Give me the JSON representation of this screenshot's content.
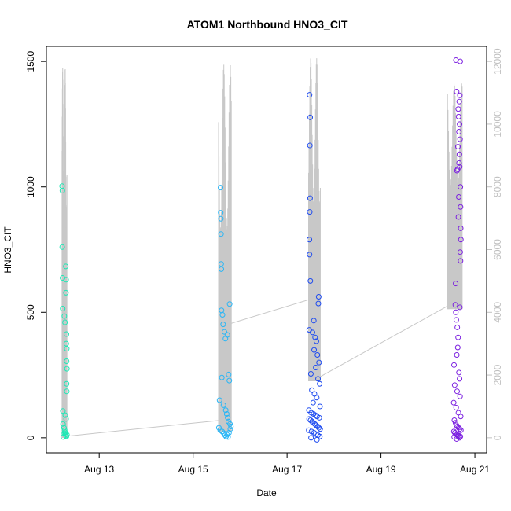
{
  "chart_data": {
    "type": "scatter",
    "title": "ATOM1 Northbound HNO3_CIT",
    "xlabel": "Date",
    "ylabel": "HNO3_CIT",
    "xlim": [
      "2016-08-11T21:00",
      "2016-08-21T06:00"
    ],
    "ylim": [
      -60,
      1560
    ],
    "y2lim": [
      -480,
      12480
    ],
    "x_ticks": [
      {
        "date": "2016-08-13T00:00",
        "label": "Aug 13"
      },
      {
        "date": "2016-08-15T00:00",
        "label": "Aug 15"
      },
      {
        "date": "2016-08-17T00:00",
        "label": "Aug 17"
      },
      {
        "date": "2016-08-19T00:00",
        "label": "Aug 19"
      },
      {
        "date": "2016-08-21T00:00",
        "label": "Aug 21"
      }
    ],
    "y_ticks": [
      0,
      500,
      1000,
      1500
    ],
    "y2_ticks": [
      0,
      2000,
      4000,
      6000,
      8000,
      10000,
      12000
    ],
    "grid": false,
    "secondary_series": {
      "color": "#c8c8c8",
      "axis": "right",
      "summary_by_flight": [
        {
          "start": "2016-08-12T05:00",
          "end": "2016-08-12T07:30",
          "min": 0,
          "max": 11800,
          "end_value": 0
        },
        {
          "start": "2016-08-15T13:00",
          "end": "2016-08-15T19:30",
          "min": 200,
          "max": 11900,
          "end_value": 3650
        },
        {
          "start": "2016-08-17T11:00",
          "end": "2016-08-17T17:00",
          "min": 1800,
          "max": 12100,
          "end_value": 1950
        },
        {
          "start": "2016-08-20T10:00",
          "end": "2016-08-20T17:30",
          "min": 4100,
          "max": 11300,
          "end_value": 4100
        }
      ],
      "connector_points": [
        {
          "x": "2016-08-12T07:30",
          "y": 50
        },
        {
          "x": "2016-08-15T13:00",
          "y": 550
        },
        {
          "x": "2016-08-15T19:30",
          "y": 3650
        },
        {
          "x": "2016-08-17T11:00",
          "y": 4400
        },
        {
          "x": "2016-08-17T17:00",
          "y": 1950
        },
        {
          "x": "2016-08-20T10:00",
          "y": 4200
        }
      ]
    },
    "series": [
      {
        "color": "#1de9b6",
        "points": [
          {
            "x": "2016-08-12T05:00",
            "y": 1003
          },
          {
            "x": "2016-08-12T05:10",
            "y": 985
          },
          {
            "x": "2016-08-12T05:05",
            "y": 760
          },
          {
            "x": "2016-08-12T05:15",
            "y": 637
          },
          {
            "x": "2016-08-12T05:20",
            "y": 515
          },
          {
            "x": "2016-08-12T06:10",
            "y": 485
          },
          {
            "x": "2016-08-12T06:30",
            "y": 460
          },
          {
            "x": "2016-08-12T06:55",
            "y": 683
          },
          {
            "x": "2016-08-12T07:05",
            "y": 630
          },
          {
            "x": "2016-08-12T07:00",
            "y": 578
          },
          {
            "x": "2016-08-12T07:15",
            "y": 413
          },
          {
            "x": "2016-08-12T07:10",
            "y": 375
          },
          {
            "x": "2016-08-12T07:25",
            "y": 355
          },
          {
            "x": "2016-08-12T07:20",
            "y": 305
          },
          {
            "x": "2016-08-12T07:30",
            "y": 275
          },
          {
            "x": "2016-08-12T07:20",
            "y": 215
          },
          {
            "x": "2016-08-12T07:25",
            "y": 185
          },
          {
            "x": "2016-08-12T05:25",
            "y": 107
          },
          {
            "x": "2016-08-12T06:40",
            "y": 90
          },
          {
            "x": "2016-08-12T07:05",
            "y": 75
          },
          {
            "x": "2016-08-12T05:30",
            "y": 55
          },
          {
            "x": "2016-08-12T06:00",
            "y": 40
          },
          {
            "x": "2016-08-12T06:20",
            "y": 30
          },
          {
            "x": "2016-08-12T06:35",
            "y": 22
          },
          {
            "x": "2016-08-12T06:50",
            "y": 15
          },
          {
            "x": "2016-08-12T07:00",
            "y": 8
          },
          {
            "x": "2016-08-12T07:15",
            "y": 5
          },
          {
            "x": "2016-08-12T07:30",
            "y": 12
          },
          {
            "x": "2016-08-12T05:40",
            "y": 3
          },
          {
            "x": "2016-08-12T06:10",
            "y": 18
          }
        ]
      },
      {
        "color": "#29b6f6",
        "points": [
          {
            "x": "2016-08-15T14:00",
            "y": 997
          },
          {
            "x": "2016-08-15T14:05",
            "y": 897
          },
          {
            "x": "2016-08-15T14:10",
            "y": 873
          },
          {
            "x": "2016-08-15T14:15",
            "y": 812
          },
          {
            "x": "2016-08-15T14:20",
            "y": 693
          },
          {
            "x": "2016-08-15T14:25",
            "y": 672
          },
          {
            "x": "2016-08-15T14:30",
            "y": 508
          },
          {
            "x": "2016-08-15T15:00",
            "y": 490
          },
          {
            "x": "2016-08-15T15:20",
            "y": 452
          },
          {
            "x": "2016-08-15T18:40",
            "y": 533
          },
          {
            "x": "2016-08-15T16:00",
            "y": 422
          },
          {
            "x": "2016-08-15T16:30",
            "y": 395
          },
          {
            "x": "2016-08-15T17:30",
            "y": 410
          },
          {
            "x": "2016-08-15T14:40",
            "y": 240
          },
          {
            "x": "2016-08-15T18:10",
            "y": 252
          },
          {
            "x": "2016-08-15T18:30",
            "y": 228
          },
          {
            "x": "2016-08-15T13:30",
            "y": 150
          },
          {
            "x": "2016-08-15T15:30",
            "y": 130
          },
          {
            "x": "2016-08-15T16:40",
            "y": 110
          },
          {
            "x": "2016-08-15T17:10",
            "y": 95
          },
          {
            "x": "2016-08-15T17:40",
            "y": 80
          },
          {
            "x": "2016-08-15T18:00",
            "y": 65
          },
          {
            "x": "2016-08-15T18:50",
            "y": 55
          },
          {
            "x": "2016-08-15T13:10",
            "y": 40
          },
          {
            "x": "2016-08-15T13:50",
            "y": 30
          },
          {
            "x": "2016-08-15T14:50",
            "y": 25
          },
          {
            "x": "2016-08-15T15:40",
            "y": 18
          },
          {
            "x": "2016-08-15T16:20",
            "y": 10
          },
          {
            "x": "2016-08-15T16:50",
            "y": 5
          },
          {
            "x": "2016-08-15T17:20",
            "y": 12
          },
          {
            "x": "2016-08-15T17:50",
            "y": 3
          },
          {
            "x": "2016-08-15T18:20",
            "y": 20
          },
          {
            "x": "2016-08-15T19:00",
            "y": 35
          },
          {
            "x": "2016-08-15T19:20",
            "y": 45
          }
        ]
      },
      {
        "color": "#1e4bf0",
        "points": [
          {
            "x": "2016-08-17T11:30",
            "y": 1367
          },
          {
            "x": "2016-08-17T11:50",
            "y": 1277
          },
          {
            "x": "2016-08-17T11:40",
            "y": 1165
          },
          {
            "x": "2016-08-17T11:45",
            "y": 955
          },
          {
            "x": "2016-08-17T11:35",
            "y": 900
          },
          {
            "x": "2016-08-17T11:25",
            "y": 790
          },
          {
            "x": "2016-08-17T11:30",
            "y": 730
          },
          {
            "x": "2016-08-17T11:55",
            "y": 625
          },
          {
            "x": "2016-08-17T16:10",
            "y": 562
          },
          {
            "x": "2016-08-17T16:00",
            "y": 535
          },
          {
            "x": "2016-08-17T11:20",
            "y": 430
          },
          {
            "x": "2016-08-17T13:40",
            "y": 467
          },
          {
            "x": "2016-08-17T13:00",
            "y": 420
          },
          {
            "x": "2016-08-17T14:20",
            "y": 400
          },
          {
            "x": "2016-08-17T15:00",
            "y": 385
          },
          {
            "x": "2016-08-17T13:50",
            "y": 350
          },
          {
            "x": "2016-08-17T15:30",
            "y": 330
          },
          {
            "x": "2016-08-17T16:20",
            "y": 300
          },
          {
            "x": "2016-08-17T14:40",
            "y": 280
          },
          {
            "x": "2016-08-17T12:10",
            "y": 255
          },
          {
            "x": "2016-08-17T15:50",
            "y": 235
          },
          {
            "x": "2016-08-17T16:40",
            "y": 215
          },
          {
            "x": "2016-08-17T12:40",
            "y": 190
          },
          {
            "x": "2016-08-17T14:00",
            "y": 175
          },
          {
            "x": "2016-08-17T15:10",
            "y": 160
          },
          {
            "x": "2016-08-17T13:20",
            "y": 140
          },
          {
            "x": "2016-08-17T16:50",
            "y": 125
          },
          {
            "x": "2016-08-17T11:10",
            "y": 110
          },
          {
            "x": "2016-08-17T12:20",
            "y": 100
          },
          {
            "x": "2016-08-17T13:30",
            "y": 95
          },
          {
            "x": "2016-08-17T14:30",
            "y": 90
          },
          {
            "x": "2016-08-17T15:20",
            "y": 85
          },
          {
            "x": "2016-08-17T16:30",
            "y": 80
          },
          {
            "x": "2016-08-17T11:15",
            "y": 75
          },
          {
            "x": "2016-08-17T12:00",
            "y": 70
          },
          {
            "x": "2016-08-17T12:50",
            "y": 65
          },
          {
            "x": "2016-08-17T13:10",
            "y": 60
          },
          {
            "x": "2016-08-17T14:10",
            "y": 55
          },
          {
            "x": "2016-08-17T14:50",
            "y": 50
          },
          {
            "x": "2016-08-17T15:40",
            "y": 45
          },
          {
            "x": "2016-08-17T16:15",
            "y": 40
          },
          {
            "x": "2016-08-17T16:55",
            "y": 35
          },
          {
            "x": "2016-08-17T11:05",
            "y": 30
          },
          {
            "x": "2016-08-17T12:30",
            "y": 25
          },
          {
            "x": "2016-08-17T13:45",
            "y": 20
          },
          {
            "x": "2016-08-17T14:45",
            "y": 15
          },
          {
            "x": "2016-08-17T15:45",
            "y": 10
          },
          {
            "x": "2016-08-17T16:45",
            "y": 5
          },
          {
            "x": "2016-08-17T12:15",
            "y": 0
          },
          {
            "x": "2016-08-17T15:15",
            "y": -8
          }
        ]
      },
      {
        "color": "#7b1fe0",
        "points": [
          {
            "x": "2016-08-20T14:20",
            "y": 1505
          },
          {
            "x": "2016-08-20T16:30",
            "y": 1500
          },
          {
            "x": "2016-08-20T14:40",
            "y": 1380
          },
          {
            "x": "2016-08-20T16:20",
            "y": 1365
          },
          {
            "x": "2016-08-20T16:00",
            "y": 1340
          },
          {
            "x": "2016-08-20T15:30",
            "y": 1310
          },
          {
            "x": "2016-08-20T15:40",
            "y": 1280
          },
          {
            "x": "2016-08-20T16:10",
            "y": 1250
          },
          {
            "x": "2016-08-20T15:50",
            "y": 1220
          },
          {
            "x": "2016-08-20T16:25",
            "y": 1190
          },
          {
            "x": "2016-08-20T15:20",
            "y": 1160
          },
          {
            "x": "2016-08-20T16:05",
            "y": 1130
          },
          {
            "x": "2016-08-20T15:55",
            "y": 1095
          },
          {
            "x": "2016-08-20T16:15",
            "y": 1080
          },
          {
            "x": "2016-08-20T14:50",
            "y": 1065
          },
          {
            "x": "2016-08-20T15:10",
            "y": 1070
          },
          {
            "x": "2016-08-20T16:35",
            "y": 1000
          },
          {
            "x": "2016-08-20T15:45",
            "y": 960
          },
          {
            "x": "2016-08-20T16:40",
            "y": 920
          },
          {
            "x": "2016-08-20T15:35",
            "y": 880
          },
          {
            "x": "2016-08-20T16:45",
            "y": 835
          },
          {
            "x": "2016-08-20T16:50",
            "y": 790
          },
          {
            "x": "2016-08-20T16:30",
            "y": 740
          },
          {
            "x": "2016-08-20T16:40",
            "y": 705
          },
          {
            "x": "2016-08-20T14:10",
            "y": 615
          },
          {
            "x": "2016-08-20T14:00",
            "y": 530
          },
          {
            "x": "2016-08-20T14:15",
            "y": 500
          },
          {
            "x": "2016-08-20T16:20",
            "y": 520
          },
          {
            "x": "2016-08-20T14:30",
            "y": 470
          },
          {
            "x": "2016-08-20T15:00",
            "y": 440
          },
          {
            "x": "2016-08-20T15:25",
            "y": 400
          },
          {
            "x": "2016-08-20T15:15",
            "y": 360
          },
          {
            "x": "2016-08-20T14:45",
            "y": 330
          },
          {
            "x": "2016-08-20T13:20",
            "y": 290
          },
          {
            "x": "2016-08-20T15:50",
            "y": 260
          },
          {
            "x": "2016-08-20T16:10",
            "y": 235
          },
          {
            "x": "2016-08-20T13:40",
            "y": 210
          },
          {
            "x": "2016-08-20T14:55",
            "y": 185
          },
          {
            "x": "2016-08-20T16:25",
            "y": 165
          },
          {
            "x": "2016-08-20T13:10",
            "y": 140
          },
          {
            "x": "2016-08-20T14:25",
            "y": 120
          },
          {
            "x": "2016-08-20T15:35",
            "y": 100
          },
          {
            "x": "2016-08-20T16:45",
            "y": 85
          },
          {
            "x": "2016-08-20T13:30",
            "y": 70
          },
          {
            "x": "2016-08-20T14:05",
            "y": 60
          },
          {
            "x": "2016-08-20T14:35",
            "y": 50
          },
          {
            "x": "2016-08-20T15:05",
            "y": 45
          },
          {
            "x": "2016-08-20T15:40",
            "y": 40
          },
          {
            "x": "2016-08-20T16:15",
            "y": 35
          },
          {
            "x": "2016-08-20T16:50",
            "y": 30
          },
          {
            "x": "2016-08-20T13:15",
            "y": 25
          },
          {
            "x": "2016-08-20T13:45",
            "y": 20
          },
          {
            "x": "2016-08-20T14:20",
            "y": 15
          },
          {
            "x": "2016-08-20T14:50",
            "y": 12
          },
          {
            "x": "2016-08-20T15:20",
            "y": 10
          },
          {
            "x": "2016-08-20T15:55",
            "y": 8
          },
          {
            "x": "2016-08-20T16:35",
            "y": 5
          },
          {
            "x": "2016-08-20T13:25",
            "y": 3
          },
          {
            "x": "2016-08-20T16:05",
            "y": 0
          },
          {
            "x": "2016-08-20T14:40",
            "y": -5
          }
        ]
      }
    ]
  }
}
